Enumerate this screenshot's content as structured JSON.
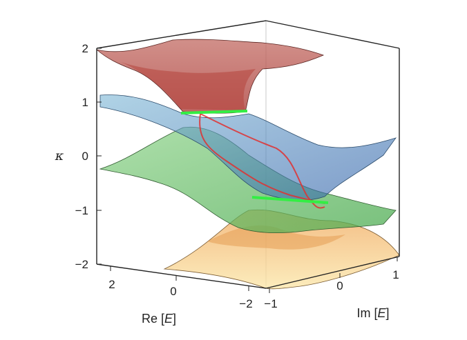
{
  "chart_data": {
    "type": "surface3d",
    "title": "",
    "axes": {
      "kappa": {
        "label": "κ",
        "range": [
          -2,
          2
        ],
        "ticks": [
          "2",
          "1",
          "0",
          "−1",
          "−2"
        ]
      },
      "re_e": {
        "label_prefix": "Re [",
        "label_var": "E",
        "label_suffix": "]",
        "range": [
          -2,
          2
        ],
        "ticks": [
          "2",
          "0",
          "−2"
        ]
      },
      "im_e": {
        "label_prefix": "Im [",
        "label_var": "E",
        "label_suffix": "]",
        "range": [
          -1,
          1
        ],
        "ticks": [
          "−1",
          "0",
          "1"
        ]
      }
    },
    "surfaces": [
      {
        "color": "#b5463f",
        "kappa_range": [
          0.8,
          2.0
        ]
      },
      {
        "color": "#5b9ec4",
        "kappa_range": [
          -1.0,
          1.0
        ]
      },
      {
        "color": "#5fbf5a",
        "kappa_range": [
          -1.0,
          1.0
        ]
      },
      {
        "color": "#efb54f",
        "kappa_range": [
          -2.0,
          -0.8
        ]
      }
    ],
    "exceptional_lines": [
      {
        "color": "#33ee44",
        "kappa": 0.8
      },
      {
        "color": "#33ee44",
        "kappa": -0.8
      }
    ],
    "crossing_curves": {
      "color": "#e03030"
    },
    "grid": false
  }
}
